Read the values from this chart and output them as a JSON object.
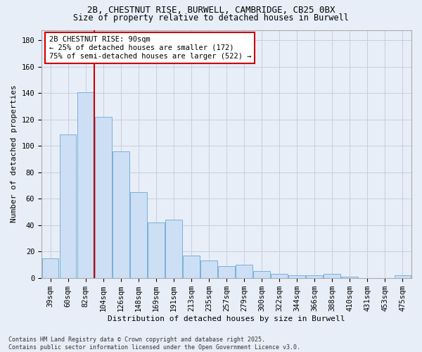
{
  "title_line1": "2B, CHESTNUT RISE, BURWELL, CAMBRIDGE, CB25 0BX",
  "title_line2": "Size of property relative to detached houses in Burwell",
  "xlabel": "Distribution of detached houses by size in Burwell",
  "ylabel": "Number of detached properties",
  "categories": [
    "39sqm",
    "60sqm",
    "82sqm",
    "104sqm",
    "126sqm",
    "148sqm",
    "169sqm",
    "191sqm",
    "213sqm",
    "235sqm",
    "257sqm",
    "279sqm",
    "300sqm",
    "322sqm",
    "344sqm",
    "366sqm",
    "388sqm",
    "410sqm",
    "431sqm",
    "453sqm",
    "475sqm"
  ],
  "values": [
    15,
    109,
    141,
    122,
    96,
    65,
    42,
    44,
    17,
    13,
    9,
    10,
    5,
    3,
    2,
    2,
    3,
    1,
    0,
    0,
    2
  ],
  "bar_color": "#ccdff5",
  "bar_edge_color": "#7ab0d8",
  "vline_x_idx": 2,
  "vline_color": "#cc0000",
  "annotation_line1": "2B CHESTNUT RISE: 90sqm",
  "annotation_line2": "← 25% of detached houses are smaller (172)",
  "annotation_line3": "75% of semi-detached houses are larger (522) →",
  "annotation_box_facecolor": "#ffffff",
  "annotation_box_edgecolor": "#cc0000",
  "ylim_max": 188,
  "yticks": [
    0,
    20,
    40,
    60,
    80,
    100,
    120,
    140,
    160,
    180
  ],
  "footer_text": "Contains HM Land Registry data © Crown copyright and database right 2025.\nContains public sector information licensed under the Open Government Licence v3.0.",
  "fig_facecolor": "#e8eef8",
  "plot_facecolor": "#e8eef8",
  "grid_color": "#c5cfe0",
  "title_fontsize": 9,
  "subtitle_fontsize": 8.5,
  "axis_label_fontsize": 8,
  "tick_fontsize": 7.5,
  "annot_fontsize": 7.5,
  "footer_fontsize": 6
}
